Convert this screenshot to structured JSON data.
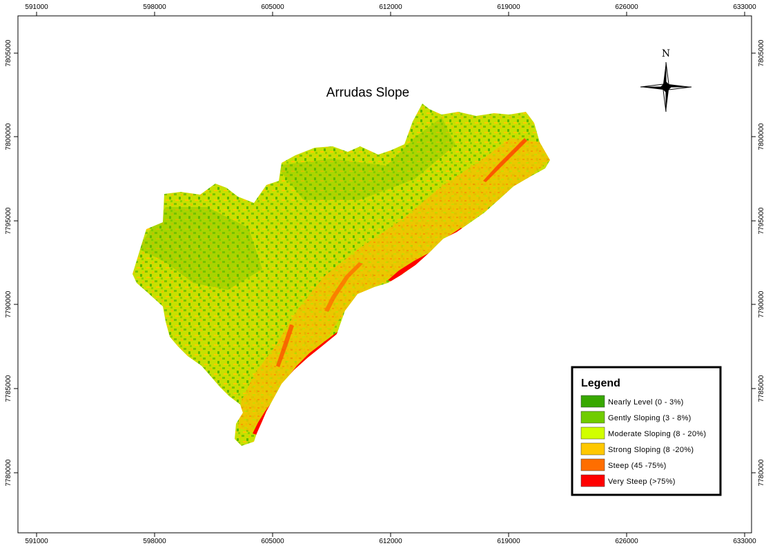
{
  "map": {
    "title": "Arrudas Slope",
    "north_label": "N",
    "x_ticks": [
      "591000",
      "598000",
      "605000",
      "612000",
      "619000",
      "626000",
      "633000"
    ],
    "y_ticks": [
      "7805000",
      "7800000",
      "7795000",
      "7790000",
      "7785000",
      "7780000"
    ]
  },
  "legend": {
    "title": "Legend",
    "items": [
      {
        "label": "Nearly Level (0 - 3%)",
        "color": "#38a800"
      },
      {
        "label": "Gently Sloping (3 - 8%)",
        "color": "#70cc00"
      },
      {
        "label": "Moderate Sloping (8 - 20%)",
        "color": "#d1ff00"
      },
      {
        "label": "Strong Sloping (8 -20%)",
        "color": "#ffc800"
      },
      {
        "label": "Steep (45 -75%)",
        "color": "#ff6e00"
      },
      {
        "label": "Very Steep (>75%)",
        "color": "#ff0000"
      }
    ]
  }
}
